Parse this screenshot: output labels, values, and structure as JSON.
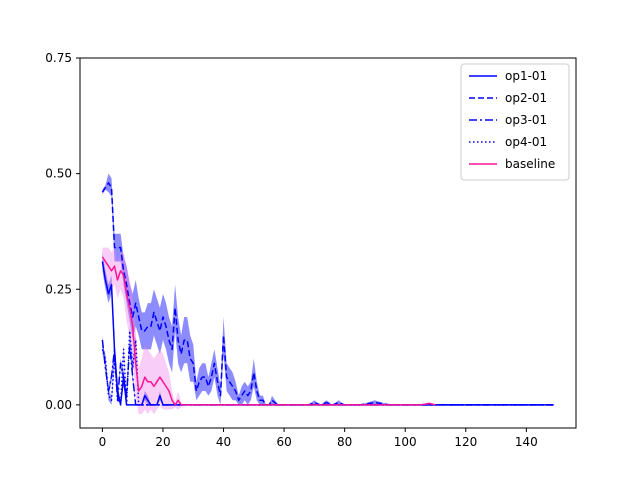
{
  "chart_data": {
    "type": "line",
    "title": "",
    "xlabel": "",
    "ylabel": "",
    "xlim": [
      -7.4,
      156.4
    ],
    "ylim": [
      -0.05,
      0.75
    ],
    "xticks": [
      0,
      20,
      40,
      60,
      80,
      100,
      120,
      140
    ],
    "yticks": [
      0.0,
      0.25,
      0.5,
      0.75
    ],
    "ytick_labels": [
      "0.00",
      "0.25",
      "0.50",
      "0.75"
    ],
    "legend_position": "top-right",
    "grid": false,
    "series": [
      {
        "name": "op1-01",
        "color": "#0000ff",
        "linestyle": "solid",
        "band_color": "#0000ff",
        "x": [
          0,
          1,
          2,
          3,
          4,
          5,
          6,
          7,
          8,
          9,
          10,
          11,
          12,
          13,
          14,
          15,
          16,
          17,
          18,
          19,
          20,
          21,
          22,
          23,
          24,
          25,
          30,
          40,
          50,
          60,
          70,
          80,
          90,
          100,
          110,
          120,
          130,
          140,
          149
        ],
        "y": [
          0.31,
          0.27,
          0.24,
          0.26,
          0.12,
          0.03,
          0.002,
          0.06,
          0.0,
          0.0,
          0.0,
          0.0,
          0.0,
          0.0,
          0.02,
          0.01,
          0.0,
          0.0,
          0.0,
          0.02,
          0.0,
          0.0,
          0.0,
          0.0,
          0.0,
          0.0,
          0.0,
          0.0,
          0.0,
          0.0,
          0.0,
          0.0,
          0.0,
          0.0,
          0.0,
          0.0,
          0.0,
          0.0,
          0.0
        ],
        "band": [
          0.02,
          0.02,
          0.02,
          0.02,
          0.02,
          0.02,
          0.0,
          0.02,
          0.0,
          0.0,
          0.0,
          0.0,
          0.0,
          0.0,
          0.01,
          0.01,
          0.0,
          0.0,
          0.0,
          0.01,
          0.0,
          0.0,
          0.0,
          0.0,
          0.0,
          0.0,
          0.0,
          0.0,
          0.0,
          0.0,
          0.0,
          0.0,
          0.0,
          0.0,
          0.0,
          0.0,
          0.0,
          0.0,
          0.0
        ]
      },
      {
        "name": "op2-01",
        "color": "#0000ff",
        "linestyle": "dashed",
        "band_color": "#0000ff",
        "x": [
          0,
          1,
          2,
          3,
          4,
          5,
          6,
          7,
          8,
          9,
          10,
          11,
          12,
          13,
          14,
          15,
          16,
          17,
          18,
          19,
          20,
          21,
          22,
          23,
          24,
          25,
          26,
          27,
          28,
          29,
          30,
          31,
          32,
          33,
          34,
          35,
          36,
          37,
          38,
          39,
          40,
          41,
          42,
          43,
          44,
          45,
          46,
          47,
          48,
          49,
          50,
          51,
          52,
          53,
          54,
          55,
          56,
          58,
          60,
          62,
          65,
          68,
          70,
          72,
          74,
          76,
          78,
          80,
          85,
          90,
          95,
          100,
          105,
          110,
          120,
          130,
          140,
          149
        ],
        "y": [
          0.46,
          0.47,
          0.48,
          0.47,
          0.34,
          0.34,
          0.34,
          0.29,
          0.26,
          0.22,
          0.19,
          0.22,
          0.19,
          0.16,
          0.16,
          0.17,
          0.17,
          0.2,
          0.18,
          0.16,
          0.19,
          0.17,
          0.14,
          0.12,
          0.21,
          0.14,
          0.11,
          0.14,
          0.14,
          0.1,
          0.09,
          0.03,
          0.05,
          0.06,
          0.06,
          0.04,
          0.06,
          0.09,
          0.05,
          0.02,
          0.15,
          0.06,
          0.05,
          0.04,
          0.03,
          0.01,
          0.02,
          0.03,
          0.02,
          0.03,
          0.07,
          0.03,
          0.01,
          0.01,
          0.0,
          0.0,
          0.01,
          0.0,
          0.0,
          0.0,
          0.0,
          0.0,
          0.005,
          0.0,
          0.005,
          0.0,
          0.005,
          0.0,
          0.0,
          0.005,
          0.0,
          0.0,
          0.0,
          0.0,
          0.0,
          0.0,
          0.0,
          0.0
        ],
        "band": [
          0.005,
          0.005,
          0.02,
          0.02,
          0.03,
          0.03,
          0.03,
          0.03,
          0.04,
          0.04,
          0.05,
          0.05,
          0.04,
          0.04,
          0.04,
          0.05,
          0.05,
          0.05,
          0.05,
          0.05,
          0.05,
          0.05,
          0.05,
          0.05,
          0.05,
          0.05,
          0.04,
          0.05,
          0.05,
          0.05,
          0.04,
          0.02,
          0.03,
          0.03,
          0.03,
          0.02,
          0.03,
          0.03,
          0.03,
          0.02,
          0.04,
          0.03,
          0.03,
          0.03,
          0.02,
          0.01,
          0.02,
          0.02,
          0.02,
          0.02,
          0.03,
          0.02,
          0.01,
          0.01,
          0.0,
          0.0,
          0.01,
          0.0,
          0.0,
          0.0,
          0.0,
          0.0,
          0.005,
          0.0,
          0.005,
          0.0,
          0.005,
          0.0,
          0.0,
          0.005,
          0.0,
          0.0,
          0.0,
          0.0,
          0.0,
          0.0,
          0.0,
          0.0
        ]
      },
      {
        "name": "op3-01",
        "color": "#0000ff",
        "linestyle": "dashdot",
        "band_color": "#0000ff",
        "x": [
          0,
          1,
          2,
          3,
          4,
          5,
          6,
          7,
          8,
          9,
          10,
          11,
          12,
          13,
          14,
          15,
          16,
          17,
          18,
          19,
          20,
          25,
          30,
          40,
          50,
          60,
          80,
          100,
          120,
          140,
          149
        ],
        "y": [
          0.14,
          0.08,
          0.03,
          0.06,
          0.12,
          0.01,
          0.09,
          0.06,
          0.02,
          0.13,
          0.06,
          0.0,
          0.0,
          0.0,
          0.0,
          0.0,
          0.0,
          0.0,
          0.0,
          0.0,
          0.0,
          0.0,
          0.0,
          0.0,
          0.0,
          0.0,
          0.0,
          0.0,
          0.0,
          0.0,
          0.0
        ],
        "band": [
          0.01,
          0.01,
          0.01,
          0.01,
          0.01,
          0.01,
          0.01,
          0.01,
          0.01,
          0.01,
          0.01,
          0.0,
          0.0,
          0.0,
          0.0,
          0.0,
          0.0,
          0.0,
          0.0,
          0.0,
          0.0,
          0.0,
          0.0,
          0.0,
          0.0,
          0.0,
          0.0,
          0.0,
          0.0,
          0.0,
          0.0
        ]
      },
      {
        "name": "op4-01",
        "color": "#0000ff",
        "linestyle": "dotted",
        "band_color": "#0000ff",
        "x": [
          0,
          1,
          2,
          3,
          4,
          5,
          6,
          7,
          8,
          9,
          10,
          11,
          12,
          13,
          14,
          15,
          20,
          30,
          40,
          60,
          80,
          100,
          120,
          140,
          149
        ],
        "y": [
          0.12,
          0.1,
          0.02,
          0.01,
          0.1,
          0.02,
          0.0,
          0.12,
          0.0,
          0.16,
          0.08,
          0.14,
          0.0,
          0.0,
          0.0,
          0.0,
          0.0,
          0.0,
          0.0,
          0.0,
          0.0,
          0.0,
          0.0,
          0.0,
          0.0
        ],
        "band": [
          0.01,
          0.01,
          0.01,
          0.01,
          0.01,
          0.01,
          0.0,
          0.01,
          0.0,
          0.01,
          0.01,
          0.01,
          0.0,
          0.0,
          0.0,
          0.0,
          0.0,
          0.0,
          0.0,
          0.0,
          0.0,
          0.0,
          0.0,
          0.0,
          0.0
        ]
      },
      {
        "name": "baseline",
        "color": "#ff1493",
        "linestyle": "solid",
        "band_color": "#ee82ee",
        "x": [
          0,
          1,
          2,
          3,
          4,
          5,
          6,
          7,
          8,
          9,
          10,
          11,
          12,
          13,
          14,
          15,
          16,
          17,
          18,
          19,
          20,
          21,
          22,
          23,
          24,
          25,
          26,
          27,
          28,
          30,
          40,
          50,
          60,
          70,
          80,
          90,
          100,
          105,
          108,
          110
        ],
        "y": [
          0.32,
          0.31,
          0.3,
          0.29,
          0.3,
          0.27,
          0.29,
          0.28,
          0.24,
          0.21,
          0.17,
          0.09,
          0.03,
          0.04,
          0.06,
          0.05,
          0.05,
          0.04,
          0.05,
          0.06,
          0.05,
          0.04,
          0.03,
          0.01,
          0.0,
          0.01,
          0.0,
          0.0,
          0.0,
          0.0,
          0.0,
          0.0,
          0.0,
          0.0,
          0.0,
          0.0,
          0.0,
          0.0,
          0.003,
          0.0
        ],
        "band": [
          0.02,
          0.03,
          0.04,
          0.04,
          0.04,
          0.04,
          0.04,
          0.05,
          0.06,
          0.06,
          0.07,
          0.07,
          0.05,
          0.06,
          0.07,
          0.07,
          0.06,
          0.06,
          0.06,
          0.06,
          0.06,
          0.05,
          0.04,
          0.02,
          0.005,
          0.02,
          0.005,
          0.0,
          0.0,
          0.0,
          0.0,
          0.0,
          0.0,
          0.0,
          0.0,
          0.0,
          0.0,
          0.0,
          0.003,
          0.0
        ]
      }
    ]
  }
}
